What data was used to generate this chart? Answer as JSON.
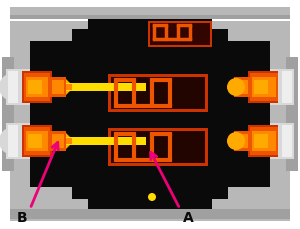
{
  "bg": "#ffffff",
  "gray1": "#b8b8b8",
  "gray2": "#a0a0a0",
  "gray3": "#c8c8c8",
  "gray4": "#888888",
  "black": "#0a0a0a",
  "orange1": "#cc3300",
  "orange2": "#ee5500",
  "orange3": "#ff8800",
  "gold": "#ffaa00",
  "yellow": "#ffdd00",
  "silver": "#d8d8d8",
  "silver2": "#eeeeee",
  "magenta": "#ee0077",
  "label_A": "A",
  "label_B": "B"
}
